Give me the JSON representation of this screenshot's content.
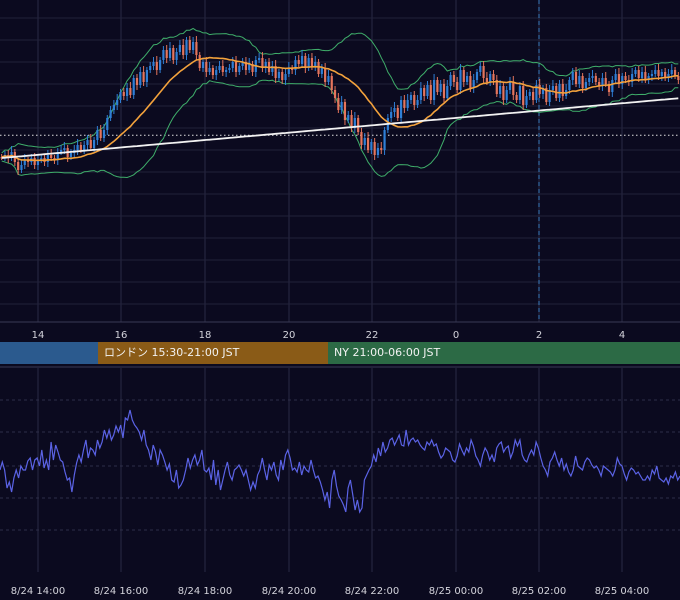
{
  "chart_data": [
    {
      "type": "candlestick",
      "x_ticks": [
        "14",
        "16",
        "18",
        "20",
        "22",
        "0",
        "2",
        "4"
      ],
      "candles_close": [
        157,
        155,
        158,
        152,
        162,
        170,
        165,
        160,
        162,
        158,
        165,
        160,
        158,
        162,
        155,
        158,
        160,
        152,
        150,
        148,
        157,
        153,
        150,
        145,
        150,
        145,
        140,
        148,
        140,
        130,
        138,
        130,
        118,
        110,
        105,
        100,
        92,
        96,
        88,
        95,
        78,
        85,
        72,
        82,
        70,
        66,
        62,
        70,
        60,
        50,
        58,
        48,
        60,
        52,
        45,
        55,
        40,
        50,
        42,
        55,
        68,
        62,
        72,
        68,
        75,
        70,
        66,
        72,
        70,
        68,
        62,
        72,
        66,
        62,
        70,
        64,
        72,
        60,
        58,
        68,
        62,
        72,
        66,
        78,
        72,
        80,
        74,
        68,
        70,
        60,
        64,
        56,
        68,
        58,
        66,
        62,
        74,
        68,
        82,
        76,
        90,
        98,
        110,
        102,
        120,
        115,
        128,
        118,
        132,
        145,
        138,
        150,
        142,
        155,
        148,
        150,
        130,
        118,
        112,
        108,
        118,
        100,
        108,
        100,
        95,
        105,
        100,
        88,
        96,
        85,
        100,
        80,
        92,
        84,
        98,
        86,
        75,
        82,
        90,
        70,
        82,
        76,
        88,
        80,
        72,
        66,
        78,
        82,
        74,
        80,
        94,
        86,
        100,
        90,
        82,
        95,
        100,
        86,
        105,
        96,
        92,
        100,
        85,
        94,
        88,
        102,
        90,
        86,
        98,
        84,
        96,
        90,
        80,
        72,
        84,
        76,
        88,
        82,
        78,
        76,
        82,
        86,
        78,
        84,
        92,
        80,
        74,
        84,
        76,
        80,
        82,
        74,
        70,
        78,
        72,
        80,
        76,
        74,
        70,
        76,
        72,
        78,
        74,
        70,
        76,
        80
      ],
      "horizontal_level_y_fraction": 0.42,
      "vertical_cursor_x_tick": "2"
    },
    {
      "type": "line",
      "x_ticks": [
        "8/24 14:00",
        "8/24 16:00",
        "8/24 18:00",
        "8/24 20:00",
        "8/24 22:00",
        "8/25 00:00",
        "8/25 02:00",
        "8/25 04:00"
      ],
      "values": [
        470,
        462,
        470,
        488,
        482,
        492,
        478,
        470,
        478,
        466,
        470,
        470,
        461,
        458,
        470,
        460,
        458,
        466,
        450,
        468,
        460,
        470,
        442,
        460,
        445,
        452,
        460,
        462,
        472,
        480,
        478,
        492,
        475,
        463,
        455,
        462,
        450,
        440,
        458,
        448,
        450,
        455,
        440,
        448,
        442,
        430,
        438,
        430,
        440,
        435,
        426,
        432,
        425,
        438,
        418,
        420,
        410,
        420,
        425,
        428,
        432,
        440,
        430,
        445,
        450,
        460,
        445,
        452,
        465,
        450,
        455,
        462,
        470,
        464,
        480,
        482,
        470,
        488,
        485,
        480,
        470,
        458,
        468,
        460,
        455,
        465,
        460,
        450,
        470,
        472,
        468,
        480,
        460,
        485,
        470,
        490,
        480,
        470,
        462,
        475,
        480,
        470,
        468,
        465,
        470,
        476,
        470,
        480,
        490,
        482,
        488,
        475,
        470,
        458,
        470,
        480,
        465,
        470,
        462,
        475,
        480,
        460,
        470,
        455,
        450,
        458,
        470,
        468,
        472,
        462,
        475,
        466,
        470,
        472,
        460,
        470,
        478,
        476,
        482,
        490,
        500,
        492,
        508,
        480,
        470,
        486,
        496,
        500,
        505,
        512,
        488,
        480,
        495,
        510,
        500,
        512,
        508,
        480,
        475,
        470,
        466,
        455,
        462,
        448,
        456,
        442,
        452,
        448,
        440,
        438,
        445,
        440,
        435,
        445,
        446,
        430,
        445,
        440,
        438,
        442,
        440,
        445,
        448,
        450,
        442,
        445,
        440,
        446,
        444,
        452,
        458,
        455,
        448,
        450,
        452,
        460,
        462,
        456,
        444,
        450,
        455,
        448,
        452,
        440,
        446,
        456,
        460,
        466,
        455,
        448,
        452,
        460,
        455,
        462,
        448,
        444,
        442,
        452,
        448,
        446,
        458,
        452,
        440,
        446,
        440,
        455,
        460,
        462,
        455,
        450,
        455,
        442,
        448,
        458,
        466,
        470,
        476,
        462,
        458,
        452,
        460,
        466,
        458,
        470,
        464,
        472,
        476,
        470,
        456,
        466,
        468,
        470,
        462,
        458,
        460,
        465,
        468,
        466,
        470,
        476,
        466,
        468,
        470,
        472,
        476,
        470,
        458,
        464,
        466,
        474,
        480,
        472,
        468,
        470,
        474,
        472,
        476,
        480,
        480,
        476,
        480,
        470,
        474,
        466,
        478,
        480,
        482,
        478,
        484,
        476,
        478,
        472,
        480,
        476
      ]
    }
  ],
  "sessions": [
    {
      "label": "",
      "color": "#2b5a8e"
    },
    {
      "label": "ロンドン 15:30-21:00 JST",
      "color": "#8a5b17"
    },
    {
      "label": "NY 21:00-06:00 JST",
      "color": "#2c6a45"
    }
  ]
}
